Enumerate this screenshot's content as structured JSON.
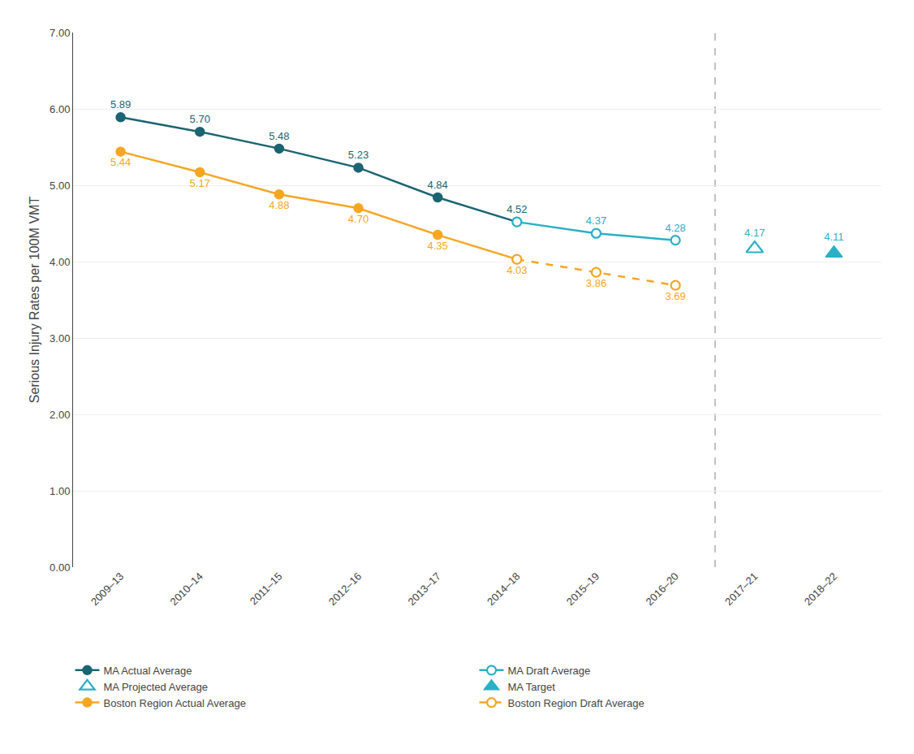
{
  "chart_data": {
    "type": "line",
    "y_label": "Serious Injury Rates per 100M VMT",
    "categories": [
      "2009–13",
      "2010–14",
      "2011–15",
      "2012–16",
      "2013–17",
      "2014–18",
      "2015–19",
      "2016–20",
      "2017–21",
      "2018–22"
    ],
    "series": [
      {
        "name": "MA Actual Average",
        "color": "#1b6472",
        "marker": "circle",
        "line_style": "solid",
        "values": [
          5.89,
          5.7,
          5.48,
          5.23,
          4.84,
          4.52,
          null,
          null,
          null,
          null
        ],
        "value_labels": [
          "5.89",
          "5.70",
          "5.48",
          "5.23",
          "4.84",
          "4.52",
          null,
          null,
          null,
          null
        ]
      },
      {
        "name": "MA Draft Average",
        "color": "#2ab0c5",
        "marker": "open circle",
        "line_style": "solid",
        "values": [
          null,
          null,
          null,
          null,
          null,
          4.52,
          4.37,
          4.28,
          null,
          null
        ],
        "value_labels": [
          null,
          null,
          null,
          null,
          null,
          null,
          "4.37",
          "4.28",
          null,
          null
        ]
      },
      {
        "name": "MA Projected Average",
        "color": "#2ab0c5",
        "marker": "open triangle",
        "line_style": "none",
        "values": [
          null,
          null,
          null,
          null,
          null,
          null,
          null,
          null,
          4.17,
          null
        ],
        "value_labels": [
          null,
          null,
          null,
          null,
          null,
          null,
          null,
          null,
          "4.17",
          null
        ]
      },
      {
        "name": "MA Target",
        "color": "#2ab0c5",
        "marker": "triangle",
        "line_style": "none",
        "values": [
          null,
          null,
          null,
          null,
          null,
          null,
          null,
          null,
          null,
          4.11
        ],
        "value_labels": [
          null,
          null,
          null,
          null,
          null,
          null,
          null,
          null,
          null,
          "4.11"
        ]
      },
      {
        "name": "Boston Region Actual Average",
        "color": "#f5a623",
        "marker": "circle",
        "line_style": "solid",
        "values": [
          5.44,
          5.17,
          4.88,
          4.7,
          4.35,
          4.03,
          null,
          null,
          null,
          null
        ],
        "value_labels": [
          "5.44",
          "5.17",
          "4.88",
          "4.70",
          "4.35",
          "4.03",
          null,
          null,
          null,
          null
        ]
      },
      {
        "name": "Boston Region Draft Average",
        "color": "#f5a623",
        "marker": "open circle",
        "line_style": "dash",
        "values": [
          null,
          null,
          null,
          null,
          null,
          4.03,
          3.86,
          3.69,
          null,
          null
        ],
        "value_labels": [
          null,
          null,
          null,
          null,
          null,
          null,
          "3.86",
          "3.69",
          null,
          null
        ]
      }
    ],
    "vline_x": 7.5,
    "vline_color": "#bbbbbb",
    "ylim": [
      0.0,
      7.0
    ],
    "yticks": [
      {
        "value": 0,
        "label": "0.00"
      },
      {
        "value": 1,
        "label": "1.00"
      },
      {
        "value": 2,
        "label": "2.00"
      },
      {
        "value": 3,
        "label": "3.00"
      },
      {
        "value": 4,
        "label": "4.00"
      },
      {
        "value": 5,
        "label": "5.00"
      },
      {
        "value": 6,
        "label": "6.00"
      },
      {
        "value": 7,
        "label": "7.00"
      }
    ],
    "grid": true,
    "data_labels": true,
    "legend": "bottom"
  }
}
